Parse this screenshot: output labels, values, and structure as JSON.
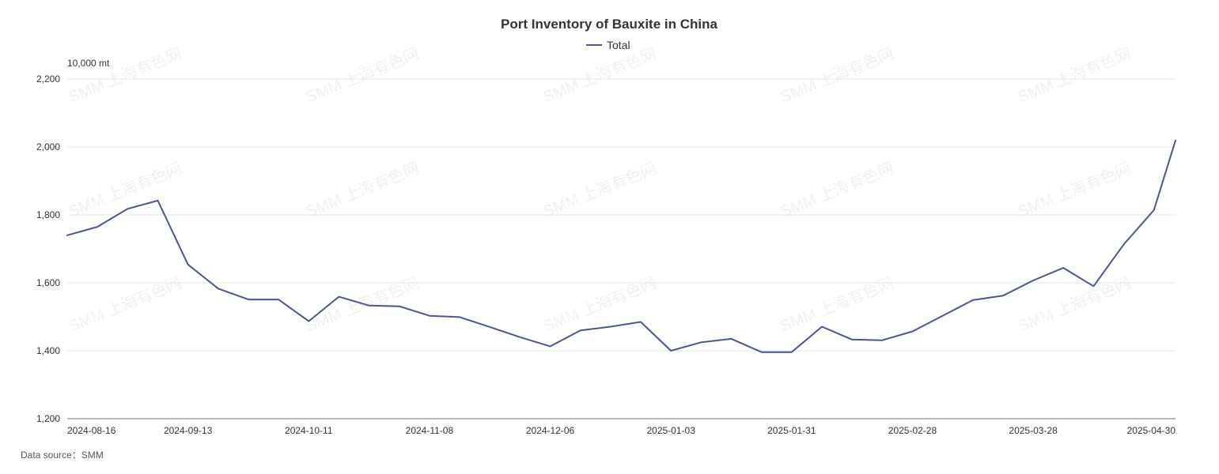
{
  "chart_data": {
    "type": "line",
    "title": "Port Inventory of Bauxite in China",
    "ylabel": "10,000 mt",
    "xlabel": "",
    "ylim": [
      1200,
      2200
    ],
    "yticks": [
      "1,200",
      "1,400",
      "1,600",
      "1,800",
      "2,000",
      "2,200"
    ],
    "ytick_values": [
      1200,
      1400,
      1600,
      1800,
      2000,
      2200
    ],
    "xtick_labels": [
      "2024-08-16",
      "2024-09-13",
      "2024-10-11",
      "2024-11-08",
      "2024-12-06",
      "2025-01-03",
      "2025-01-31",
      "2025-02-28",
      "2025-03-28",
      "2025-04-30"
    ],
    "xtick_dates": [
      "2024-08-16",
      "2024-09-13",
      "2024-10-11",
      "2024-11-08",
      "2024-12-06",
      "2025-01-03",
      "2025-01-31",
      "2025-02-28",
      "2025-03-28",
      "2025-04-30"
    ],
    "grid": true,
    "legend_position": "top-center",
    "series": [
      {
        "name": "Total",
        "color": "#4a5592",
        "x": [
          "2024-08-16",
          "2024-08-23",
          "2024-08-30",
          "2024-09-06",
          "2024-09-13",
          "2024-09-20",
          "2024-09-27",
          "2024-10-04",
          "2024-10-11",
          "2024-10-18",
          "2024-10-25",
          "2024-11-01",
          "2024-11-08",
          "2024-11-15",
          "2024-11-22",
          "2024-11-29",
          "2024-12-06",
          "2024-12-13",
          "2024-12-20",
          "2024-12-27",
          "2025-01-03",
          "2025-01-10",
          "2025-01-17",
          "2025-01-24",
          "2025-01-31",
          "2025-02-07",
          "2025-02-14",
          "2025-02-21",
          "2025-02-28",
          "2025-03-07",
          "2025-03-14",
          "2025-03-21",
          "2025-03-28",
          "2025-04-04",
          "2025-04-11",
          "2025-04-18",
          "2025-04-25",
          "2025-04-30"
        ],
        "values": [
          1740,
          1765,
          1818,
          1842,
          1654,
          1583,
          1551,
          1551,
          1487,
          1559,
          1533,
          1531,
          1503,
          1499,
          1470,
          1440,
          1413,
          1460,
          1471,
          1485,
          1400,
          1425,
          1435,
          1396,
          1396,
          1471,
          1433,
          1431,
          1457,
          1503,
          1549,
          1562,
          1607,
          1644,
          1590,
          1713,
          1814,
          2019
        ]
      }
    ]
  },
  "source": {
    "text": "Data source：SMM"
  },
  "watermark": {
    "text": "SMM 上海有色网"
  }
}
